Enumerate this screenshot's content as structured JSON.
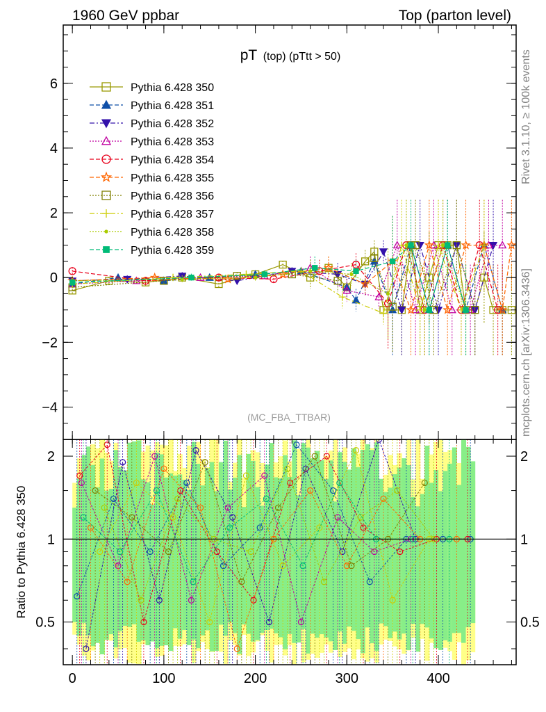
{
  "header": {
    "left": "1960 GeV ppbar",
    "right": "Top (parton level)"
  },
  "side_labels": {
    "rivet": "Rivet 3.1.10, ≥ 100k events",
    "mcplots": "mcplots.cern.ch [arXiv:1306.3436]"
  },
  "chart_data": [
    {
      "type": "line",
      "panel": "main",
      "title_main": "pT",
      "title_sub": "(top) (pTtt > 50)",
      "watermark": "(MC_FBA_TTBAR)",
      "xlabel": "",
      "ylabel": "",
      "xlim": [
        -10,
        485
      ],
      "ylim": [
        -5,
        7.8
      ],
      "xticks": [
        0,
        100,
        200,
        300,
        400
      ],
      "yticks": [
        -4,
        -2,
        0,
        2,
        4,
        6
      ],
      "ytick_labels": [
        "−4",
        "−2",
        "0",
        "2",
        "4",
        "6"
      ],
      "series": [
        {
          "name": "Pythia 6.428 350",
          "color": "#999900",
          "marker": "square-open",
          "dash": "solid",
          "x": [
            0,
            40,
            80,
            120,
            160,
            200,
            230,
            260,
            280,
            300,
            320,
            330,
            340,
            360,
            370,
            380,
            390,
            400,
            410,
            420,
            430,
            440,
            450,
            460,
            470,
            480
          ],
          "y": [
            -0.4,
            -0.1,
            -0.15,
            0.0,
            -0.2,
            0.1,
            0.4,
            0.0,
            0.3,
            -0.3,
            0.5,
            0.8,
            -1.0,
            -1.0,
            1.0,
            -1.0,
            0.0,
            1.0,
            1.0,
            1.0,
            -1.0,
            -1.0,
            0.0,
            -1.0,
            -1.0,
            -1.0
          ]
        },
        {
          "name": "Pythia 6.428 351",
          "color": "#0f4fa8",
          "marker": "triangle-up",
          "dash": "dashed",
          "x": [
            0,
            50,
            100,
            150,
            200,
            250,
            300,
            310,
            330,
            350,
            370,
            390,
            410,
            430,
            450,
            470
          ],
          "y": [
            -0.2,
            0.0,
            -0.1,
            0.0,
            0.1,
            0.2,
            -0.3,
            -0.7,
            0.5,
            -1.0,
            1.0,
            -1.0,
            1.0,
            -1.0,
            1.0,
            -1.0
          ]
        },
        {
          "name": "Pythia 6.428 352",
          "color": "#3311aa",
          "marker": "triangle-down",
          "dash": "dashdot",
          "x": [
            0,
            60,
            120,
            180,
            240,
            290,
            320,
            340,
            360,
            380,
            400,
            420,
            440,
            460
          ],
          "y": [
            -0.1,
            -0.05,
            0.05,
            -0.1,
            0.2,
            0.1,
            -0.2,
            0.8,
            -1.0,
            1.0,
            -1.0,
            1.0,
            -1.0,
            1.0
          ]
        },
        {
          "name": "Pythia 6.428 353",
          "color": "#c000a0",
          "marker": "triangle-open",
          "dash": "dotted",
          "x": [
            0,
            70,
            140,
            210,
            260,
            300,
            335,
            355,
            375,
            395,
            415,
            435,
            455,
            470
          ],
          "y": [
            -0.2,
            -0.1,
            0.0,
            0.05,
            0.3,
            -0.4,
            -0.6,
            1.0,
            -1.0,
            1.0,
            -1.0,
            -1.0,
            1.0,
            1.0
          ]
        },
        {
          "name": "Pythia 6.428 354",
          "color": "#e8001b",
          "marker": "circle-open",
          "dash": "dashed",
          "x": [
            0,
            80,
            160,
            220,
            270,
            310,
            345,
            365,
            385,
            405,
            425,
            445,
            465
          ],
          "y": [
            0.2,
            -0.1,
            0.0,
            -0.05,
            0.2,
            0.4,
            -0.8,
            1.0,
            -1.0,
            1.0,
            -1.0,
            1.0,
            -1.0
          ]
        },
        {
          "name": "Pythia 6.428 355",
          "color": "#ff6600",
          "marker": "star",
          "dash": "dashed",
          "x": [
            0,
            90,
            170,
            230,
            280,
            320,
            350,
            370,
            390,
            410,
            430,
            450,
            470,
            480
          ],
          "y": [
            -0.1,
            0.0,
            -0.05,
            0.1,
            0.3,
            -0.2,
            0.5,
            -1.0,
            1.0,
            -1.0,
            1.0,
            1.0,
            -1.0,
            1.0
          ]
        },
        {
          "name": "Pythia 6.428 356",
          "color": "#808000",
          "marker": "square-open",
          "dash": "dotted",
          "x": [
            0,
            100,
            180,
            240,
            290,
            330,
            350,
            375,
            395,
            420,
            440
          ],
          "y": [
            -0.3,
            -0.1,
            0.05,
            0.1,
            -0.1,
            0.6,
            -0.9,
            1.0,
            -1.0,
            1.0,
            -1.0
          ]
        },
        {
          "name": "Pythia 6.428 357",
          "color": "#cccc00",
          "marker": "cross",
          "dash": "dashdot",
          "x": [
            0,
            110,
            190,
            250,
            295,
            340,
            360,
            380,
            400,
            425,
            450
          ],
          "y": [
            -0.2,
            0.0,
            0.1,
            0.2,
            -0.6,
            -1.1,
            1.0,
            -1.0,
            1.0,
            -1.0,
            1.0
          ]
        },
        {
          "name": "Pythia 6.428 358",
          "color": "#aacc00",
          "marker": "dot",
          "dash": "dotted",
          "x": [
            0,
            120,
            200,
            260,
            305,
            345,
            365,
            385,
            405,
            430
          ],
          "y": [
            -0.1,
            -0.05,
            0.0,
            0.2,
            0.1,
            -0.5,
            1.0,
            -1.0,
            1.0,
            -1.0
          ]
        },
        {
          "name": "Pythia 6.428 359",
          "color": "#00bb77",
          "marker": "square-filled",
          "dash": "dashed",
          "x": [
            0,
            130,
            210,
            265,
            310,
            350,
            370,
            390,
            410,
            430
          ],
          "y": [
            -0.15,
            0.0,
            0.1,
            0.3,
            0.2,
            0.5,
            1.0,
            -1.0,
            1.0,
            -1.0
          ]
        }
      ]
    },
    {
      "type": "line",
      "panel": "ratio",
      "ylabel": "Ratio to Pythia 6.428 350",
      "xlim": [
        -10,
        485
      ],
      "ylim": [
        0.35,
        2.3
      ],
      "xticks": [
        0,
        100,
        200,
        300,
        400
      ],
      "xtick_labels": [
        "0",
        "100",
        "200",
        "300",
        "400"
      ],
      "yticks": [
        0.5,
        1,
        2
      ],
      "ytick_labels": [
        "0.5",
        "1",
        "2"
      ],
      "reference_line": 1,
      "band_colors": {
        "outer": "#ffff88",
        "inner": "#88ee88"
      },
      "band_x_range": [
        0,
        440
      ],
      "series_ratio": [
        {
          "name": "Pythia 6.428 351",
          "color": "#0f4fa8",
          "x": [
            5,
            45,
            85,
            125,
            165,
            205,
            245,
            285,
            325,
            365,
            405,
            435
          ],
          "y": [
            0.62,
            1.4,
            0.9,
            1.6,
            0.8,
            1.1,
            2.2,
            1.5,
            0.7,
            1.0,
            1.0,
            1.0
          ]
        },
        {
          "name": "Pythia 6.428 352",
          "color": "#3311aa",
          "x": [
            15,
            55,
            95,
            135,
            175,
            215,
            255,
            295,
            335,
            375
          ],
          "y": [
            0.4,
            1.9,
            0.6,
            2.1,
            1.2,
            0.5,
            1.8,
            0.9,
            2.3,
            1.0
          ]
        },
        {
          "name": "Pythia 6.428 353",
          "color": "#c000a0",
          "x": [
            10,
            50,
            90,
            130,
            170,
            210,
            250,
            290,
            330,
            370
          ],
          "y": [
            1.6,
            0.8,
            2.0,
            0.6,
            1.3,
            1.7,
            0.5,
            1.2,
            0.9,
            1.0
          ]
        },
        {
          "name": "Pythia 6.428 354",
          "color": "#e8001b",
          "x": [
            8,
            38,
            78,
            118,
            158,
            198,
            238,
            278,
            318,
            358,
            398,
            432
          ],
          "y": [
            1.7,
            2.2,
            0.5,
            1.5,
            0.9,
            0.6,
            1.6,
            2.0,
            1.1,
            0.9,
            1.0,
            1.0
          ]
        },
        {
          "name": "Pythia 6.428 355",
          "color": "#ff6600",
          "x": [
            20,
            60,
            100,
            140,
            180,
            220,
            260,
            300,
            340,
            380,
            420
          ],
          "y": [
            1.1,
            0.7,
            1.8,
            1.3,
            0.4,
            1.0,
            1.5,
            0.8,
            1.4,
            1.0,
            1.0
          ]
        },
        {
          "name": "Pythia 6.428 356",
          "color": "#808000",
          "x": [
            25,
            65,
            105,
            145,
            185,
            225,
            265,
            305,
            345,
            385
          ],
          "y": [
            1.5,
            1.2,
            0.9,
            1.9,
            0.7,
            1.3,
            2.0,
            0.8,
            1.0,
            1.6
          ]
        },
        {
          "name": "Pythia 6.428 357",
          "color": "#cccc00",
          "x": [
            30,
            70,
            110,
            150,
            190,
            230,
            270,
            310,
            350,
            390
          ],
          "y": [
            0.9,
            1.6,
            1.2,
            0.5,
            1.7,
            0.8,
            1.1,
            2.1,
            0.6,
            1.0
          ]
        },
        {
          "name": "Pythia 6.428 358",
          "color": "#aacc00",
          "x": [
            35,
            75,
            115,
            155,
            195,
            235,
            275,
            315,
            355,
            395
          ],
          "y": [
            1.3,
            0.6,
            1.4,
            1.0,
            0.9,
            1.8,
            0.7,
            1.2,
            1.5,
            1.0
          ]
        },
        {
          "name": "Pythia 6.428 359",
          "color": "#00bb77",
          "x": [
            12,
            52,
            92,
            132,
            172,
            212,
            252,
            292,
            332,
            372,
            412
          ],
          "y": [
            1.2,
            0.9,
            1.5,
            0.7,
            1.1,
            1.4,
            0.8,
            1.6,
            1.0,
            1.0,
            1.0
          ]
        }
      ]
    }
  ]
}
